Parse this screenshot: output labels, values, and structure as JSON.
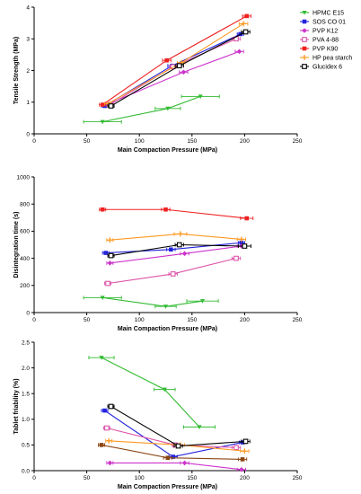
{
  "legend": [
    {
      "name": "HPMC E15",
      "color": "#33bb33",
      "marker": "triangle-down"
    },
    {
      "name": "SOS CO 01",
      "color": "#2222dd",
      "marker": "square"
    },
    {
      "name": "PVP K12",
      "color": "#cc33cc",
      "marker": "diamond"
    },
    {
      "name": "PVA 4-88",
      "color": "#dd55aa",
      "marker": "square-open"
    },
    {
      "name": "PVP K90",
      "color": "#ee2222",
      "marker": "square"
    },
    {
      "name": "HP pea starch",
      "color": "#ff9922",
      "marker": "plus"
    },
    {
      "name": "Glucidex 6",
      "color": "#000000",
      "marker": "square-open"
    }
  ],
  "chart_data": [
    {
      "type": "line",
      "xlabel": "Main Compaction Pressure (MPa)",
      "ylabel": "Tensile Strength (MPa)",
      "xlim": [
        0,
        250
      ],
      "ylim": [
        0,
        4
      ],
      "xticks": [
        "0",
        "50",
        "100",
        "150",
        "200",
        "250"
      ],
      "yticks": [
        "0",
        "1",
        "2",
        "3",
        "4"
      ],
      "series": [
        {
          "name": "HPMC E15",
          "color": "#33bb33",
          "marker": "triangle-down",
          "x": [
            65,
            127,
            158
          ],
          "y": [
            0.38,
            0.8,
            1.18
          ],
          "xerr": [
            18,
            12,
            18
          ]
        },
        {
          "name": "SOS CO 01",
          "color": "#2222dd",
          "marker": "square",
          "x": [
            67,
            131,
            196
          ],
          "y": [
            0.88,
            2.15,
            3.15
          ],
          "xerr": [
            3,
            4,
            3
          ]
        },
        {
          "name": "PVP K12",
          "color": "#cc33cc",
          "marker": "diamond",
          "x": [
            71,
            142,
            195
          ],
          "y": [
            0.95,
            1.95,
            2.6
          ],
          "xerr": [
            3,
            4,
            4
          ]
        },
        {
          "name": "PVA 4-88",
          "color": "#dd55aa",
          "marker": "square-open",
          "x": [
            72,
            132,
            192
          ],
          "y": [
            0.92,
            2.12,
            3.0
          ],
          "xerr": [
            3,
            3,
            4
          ]
        },
        {
          "name": "PVP K90",
          "color": "#ee2222",
          "marker": "square",
          "x": [
            65,
            126,
            202
          ],
          "y": [
            0.92,
            2.32,
            3.72
          ],
          "xerr": [
            3,
            4,
            4
          ]
        },
        {
          "name": "HP pea starch",
          "color": "#ff9922",
          "marker": "plus",
          "x": [
            70,
            140,
            199
          ],
          "y": [
            0.95,
            2.25,
            3.48
          ],
          "xerr": [
            3,
            4,
            4
          ]
        },
        {
          "name": "Glucidex 6",
          "color": "#000000",
          "marker": "square-open",
          "x": [
            73,
            138,
            201
          ],
          "y": [
            0.88,
            2.15,
            3.22
          ],
          "xerr": [
            3,
            4,
            4
          ]
        }
      ]
    },
    {
      "type": "line",
      "xlabel": "Main Compaction Pressure (MPa)",
      "ylabel": "Disintegration time (s)",
      "xlim": [
        0,
        250
      ],
      "ylim": [
        0,
        1000
      ],
      "xticks": [
        "0",
        "50",
        "100",
        "150",
        "200",
        "250"
      ],
      "yticks": [
        "0",
        "200",
        "400",
        "600",
        "800",
        "1000"
      ],
      "series": [
        {
          "name": "HPMC E15",
          "color": "#33bb33",
          "marker": "triangle-down",
          "x": [
            65,
            125,
            160
          ],
          "y": [
            110,
            45,
            85
          ],
          "xerr": [
            18,
            10,
            15
          ]
        },
        {
          "name": "SOS CO 01",
          "color": "#2222dd",
          "marker": "square",
          "x": [
            68,
            130,
            197
          ],
          "y": [
            440,
            465,
            515
          ],
          "xerr": [
            3,
            4,
            3
          ]
        },
        {
          "name": "PVP K12",
          "color": "#cc33cc",
          "marker": "diamond",
          "x": [
            72,
            143,
            197
          ],
          "y": [
            365,
            435,
            490
          ],
          "xerr": [
            3,
            4,
            4
          ]
        },
        {
          "name": "PVA 4-88",
          "color": "#dd55aa",
          "marker": "square-open",
          "x": [
            70,
            132,
            192
          ],
          "y": [
            215,
            285,
            400
          ],
          "xerr": [
            3,
            4,
            4
          ]
        },
        {
          "name": "PVP K90",
          "color": "#ee2222",
          "marker": "square",
          "x": [
            65,
            125,
            202
          ],
          "y": [
            760,
            760,
            695
          ],
          "xerr": [
            3,
            4,
            6
          ]
        },
        {
          "name": "HP pea starch",
          "color": "#ff9922",
          "marker": "plus",
          "x": [
            72,
            139,
            197
          ],
          "y": [
            535,
            580,
            540
          ],
          "xerr": [
            3,
            6,
            4
          ]
        },
        {
          "name": "Glucidex 6",
          "color": "#000000",
          "marker": "square-open",
          "x": [
            73,
            138,
            200
          ],
          "y": [
            420,
            500,
            490
          ],
          "xerr": [
            3,
            4,
            6
          ]
        }
      ]
    },
    {
      "type": "line",
      "xlabel": "Main Compaction Pressure (MPa)",
      "ylabel": "Tablet friability (%)",
      "xlim": [
        0,
        250
      ],
      "ylim": [
        0,
        2.5
      ],
      "xticks": [
        "0",
        "50",
        "100",
        "150",
        "200",
        "250"
      ],
      "yticks": [
        "0.0",
        "0.5",
        "1.0",
        "1.5",
        "2.0",
        "2.5"
      ],
      "series": [
        {
          "name": "HPMC E15",
          "color": "#33bb33",
          "marker": "triangle-down",
          "x": [
            64,
            124,
            157
          ],
          "y": [
            2.2,
            1.58,
            0.85
          ],
          "xerr": [
            12,
            10,
            15
          ]
        },
        {
          "name": "SOS CO 01",
          "color": "#2222dd",
          "marker": "square",
          "x": [
            67,
            132,
            198
          ],
          "y": [
            1.17,
            0.27,
            0.55
          ],
          "xerr": [
            3,
            4,
            3
          ]
        },
        {
          "name": "PVP K12",
          "color": "#cc33cc",
          "marker": "diamond",
          "x": [
            72,
            143,
            197
          ],
          "y": [
            0.15,
            0.15,
            0.02
          ],
          "xerr": [
            3,
            4,
            4
          ]
        },
        {
          "name": "PVA 4-88",
          "color": "#dd55aa",
          "marker": "square-open",
          "x": [
            69,
            134,
            192
          ],
          "y": [
            0.83,
            0.5,
            0.45
          ],
          "xerr": [
            3,
            3,
            4
          ]
        },
        {
          "name": "PVP K90",
          "color": "#8b4513",
          "marker": "square",
          "x": [
            64,
            127,
            198
          ],
          "y": [
            0.5,
            0.25,
            0.22
          ],
          "xerr": [
            3,
            4,
            4
          ]
        },
        {
          "name": "HP pea starch",
          "color": "#ff9922",
          "marker": "plus",
          "x": [
            71,
            139,
            200
          ],
          "y": [
            0.58,
            0.5,
            0.38
          ],
          "xerr": [
            3,
            4,
            4
          ]
        },
        {
          "name": "Glucidex 6",
          "color": "#000000",
          "marker": "square-open",
          "x": [
            73,
            137,
            201
          ],
          "y": [
            1.25,
            0.48,
            0.57
          ],
          "xerr": [
            3,
            4,
            4
          ]
        }
      ]
    }
  ]
}
